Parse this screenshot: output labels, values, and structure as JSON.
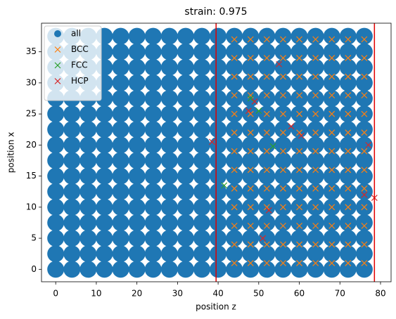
{
  "chart_data": {
    "type": "scatter",
    "title": "strain: 0.975",
    "xlabel": "position z",
    "ylabel": "position x",
    "xlim": [
      -3.5,
      82.6
    ],
    "ylim": [
      -2.0,
      39.6
    ],
    "xticks": [
      0,
      10,
      20,
      30,
      40,
      50,
      60,
      70,
      80
    ],
    "yticks": [
      0,
      5,
      10,
      15,
      20,
      25,
      30,
      35
    ],
    "legend": "upper left",
    "vlines": [
      39.5,
      78.5
    ],
    "vline_color": "#e00000",
    "series": [
      {
        "name": "all",
        "color": "#1f77b4",
        "marker": "o",
        "x": [
          0,
          4,
          8,
          12,
          16,
          20,
          24,
          28,
          32,
          36,
          40,
          44,
          48,
          52,
          56,
          60,
          64,
          68,
          72,
          76,
          0,
          4,
          8,
          12,
          16,
          20,
          24,
          28,
          32,
          36,
          40,
          44,
          48,
          52,
          56,
          60,
          64,
          68,
          72,
          76,
          0,
          4,
          8,
          12,
          16,
          20,
          24,
          28,
          32,
          36,
          40,
          44,
          48,
          52,
          56,
          60,
          64,
          68,
          72,
          76,
          0,
          4,
          8,
          12,
          16,
          20,
          24,
          28,
          32,
          36,
          40,
          44,
          48,
          52,
          56,
          60,
          64,
          68,
          72,
          76,
          0,
          4,
          8,
          12,
          16,
          20,
          24,
          28,
          32,
          36,
          40,
          44,
          48,
          52,
          56,
          60,
          64,
          68,
          72,
          76,
          0,
          4,
          8,
          12,
          16,
          20,
          24,
          28,
          32,
          36,
          40,
          44,
          48,
          52,
          56,
          60,
          64,
          68,
          72,
          76,
          0,
          4,
          8,
          12,
          16,
          20,
          24,
          28,
          32,
          36,
          40,
          44,
          48,
          52,
          56,
          60,
          64,
          68,
          72,
          76,
          0,
          4,
          8,
          12,
          16,
          20,
          24,
          28,
          32,
          36,
          40,
          44,
          48,
          52,
          56,
          60,
          64,
          68,
          72,
          76,
          0,
          4,
          8,
          12,
          16,
          20,
          24,
          28,
          32,
          36,
          40,
          44,
          48,
          52,
          56,
          60,
          64,
          68,
          72,
          76,
          0,
          4,
          8,
          12,
          16,
          20,
          24,
          28,
          32,
          36,
          40,
          44,
          48,
          52,
          56,
          60,
          64,
          68,
          72,
          76,
          0,
          4,
          8,
          12,
          16,
          20,
          24,
          28,
          32,
          36,
          40,
          44,
          48,
          52,
          56,
          60,
          64,
          68,
          72,
          76,
          0,
          4,
          8,
          12,
          16,
          20,
          24,
          28,
          32,
          36,
          40,
          44,
          48,
          52,
          56,
          60,
          64,
          68,
          72,
          76,
          0,
          4,
          8,
          12,
          16,
          20,
          24,
          28,
          32,
          36,
          40,
          44,
          48,
          52,
          56,
          60,
          64,
          68,
          72,
          76,
          0,
          4,
          8,
          12,
          16,
          20,
          24,
          28,
          32,
          36,
          40,
          44,
          48,
          52,
          56,
          60,
          64,
          68,
          72,
          76,
          0,
          4,
          8,
          12,
          16,
          20,
          24,
          28,
          32,
          36,
          40,
          44,
          48,
          52,
          56,
          60,
          64,
          68,
          72,
          76,
          0,
          4,
          8,
          12,
          16,
          20,
          24,
          28,
          32,
          36,
          40,
          44,
          48,
          52,
          56,
          60,
          64,
          68,
          72,
          76
        ],
        "values": [
          0,
          0,
          0,
          0,
          0,
          0,
          0,
          0,
          0,
          0,
          0,
          0,
          0,
          0,
          0,
          0,
          0,
          0,
          0,
          0,
          2.5,
          2.5,
          2.5,
          2.5,
          2.5,
          2.5,
          2.5,
          2.5,
          2.5,
          2.5,
          2.5,
          2.5,
          2.5,
          2.5,
          2.5,
          2.5,
          2.5,
          2.5,
          2.5,
          2.5,
          5,
          5,
          5,
          5,
          5,
          5,
          5,
          5,
          5,
          5,
          5,
          5,
          5,
          5,
          5,
          5,
          5,
          5,
          5,
          5,
          7.5,
          7.5,
          7.5,
          7.5,
          7.5,
          7.5,
          7.5,
          7.5,
          7.5,
          7.5,
          7.5,
          7.5,
          7.5,
          7.5,
          7.5,
          7.5,
          7.5,
          7.5,
          7.5,
          7.5,
          10,
          10,
          10,
          10,
          10,
          10,
          10,
          10,
          10,
          10,
          10,
          10,
          10,
          10,
          10,
          10,
          10,
          10,
          10,
          10,
          12.5,
          12.5,
          12.5,
          12.5,
          12.5,
          12.5,
          12.5,
          12.5,
          12.5,
          12.5,
          12.5,
          12.5,
          12.5,
          12.5,
          12.5,
          12.5,
          12.5,
          12.5,
          12.5,
          12.5,
          15,
          15,
          15,
          15,
          15,
          15,
          15,
          15,
          15,
          15,
          15,
          15,
          15,
          15,
          15,
          15,
          15,
          15,
          15,
          15,
          17.5,
          17.5,
          17.5,
          17.5,
          17.5,
          17.5,
          17.5,
          17.5,
          17.5,
          17.5,
          17.5,
          17.5,
          17.5,
          17.5,
          17.5,
          17.5,
          17.5,
          17.5,
          17.5,
          17.5,
          20,
          20,
          20,
          20,
          20,
          20,
          20,
          20,
          20,
          20,
          20,
          20,
          20,
          20,
          20,
          20,
          20,
          20,
          20,
          20,
          22.5,
          22.5,
          22.5,
          22.5,
          22.5,
          22.5,
          22.5,
          22.5,
          22.5,
          22.5,
          22.5,
          22.5,
          22.5,
          22.5,
          22.5,
          22.5,
          22.5,
          22.5,
          22.5,
          22.5,
          25,
          25,
          25,
          25,
          25,
          25,
          25,
          25,
          25,
          25,
          25,
          25,
          25,
          25,
          25,
          25,
          25,
          25,
          25,
          25,
          27.5,
          27.5,
          27.5,
          27.5,
          27.5,
          27.5,
          27.5,
          27.5,
          27.5,
          27.5,
          27.5,
          27.5,
          27.5,
          27.5,
          27.5,
          27.5,
          27.5,
          27.5,
          27.5,
          27.5,
          30,
          30,
          30,
          30,
          30,
          30,
          30,
          30,
          30,
          30,
          30,
          30,
          30,
          30,
          30,
          30,
          30,
          30,
          30,
          30,
          32.5,
          32.5,
          32.5,
          32.5,
          32.5,
          32.5,
          32.5,
          32.5,
          32.5,
          32.5,
          32.5,
          32.5,
          32.5,
          32.5,
          32.5,
          32.5,
          32.5,
          32.5,
          32.5,
          32.5,
          35,
          35,
          35,
          35,
          35,
          35,
          35,
          35,
          35,
          35,
          35,
          35,
          35,
          35,
          35,
          35,
          35,
          35,
          35,
          35,
          37.5,
          37.5,
          37.5,
          37.5,
          37.5,
          37.5,
          37.5,
          37.5,
          37.5,
          37.5,
          37.5,
          37.5,
          37.5,
          37.5,
          37.5,
          37.5,
          37.5,
          37.5,
          37.5,
          37.5
        ]
      },
      {
        "name": "BCC",
        "color": "#ff7f0e",
        "marker": "x",
        "x": [
          44,
          48,
          52,
          56,
          60,
          64,
          68,
          72,
          76,
          44,
          48,
          52,
          56,
          60,
          64,
          68,
          72,
          76,
          44,
          48,
          52,
          56,
          60,
          64,
          68,
          72,
          76,
          44,
          48,
          52,
          56,
          60,
          64,
          68,
          72,
          76,
          44,
          48,
          52,
          56,
          60,
          64,
          68,
          72,
          76,
          44,
          48,
          52,
          56,
          60,
          64,
          68,
          72,
          76,
          44,
          48,
          52,
          56,
          60,
          64,
          68,
          72,
          76,
          44,
          48,
          52,
          56,
          60,
          64,
          68,
          72,
          76,
          44,
          48,
          52,
          56,
          60,
          64,
          68,
          72,
          76,
          44,
          48,
          52,
          56,
          60,
          64,
          68,
          72,
          76,
          44,
          48,
          52,
          56,
          60,
          64,
          68,
          72,
          76,
          44,
          48,
          52,
          56,
          60,
          64,
          68,
          72,
          76,
          44,
          48,
          52,
          56,
          60,
          64,
          68,
          72,
          76
        ],
        "values": [
          1,
          1,
          1,
          1,
          1,
          1,
          1,
          1,
          1,
          4,
          4,
          4,
          4,
          4,
          4,
          4,
          4,
          4,
          7,
          7,
          7,
          7,
          7,
          7,
          7,
          7,
          7,
          10,
          10,
          10,
          10,
          10,
          10,
          10,
          10,
          10,
          13,
          13,
          13,
          13,
          13,
          13,
          13,
          13,
          13,
          16,
          16,
          16,
          16,
          16,
          16,
          16,
          16,
          16,
          19,
          19,
          19,
          19,
          19,
          19,
          19,
          19,
          19,
          22,
          22,
          22,
          22,
          22,
          22,
          22,
          22,
          22,
          25,
          25,
          25,
          25,
          25,
          25,
          25,
          25,
          25,
          28,
          28,
          28,
          28,
          28,
          28,
          28,
          28,
          28,
          31,
          31,
          31,
          31,
          31,
          31,
          31,
          31,
          31,
          34,
          34,
          34,
          34,
          34,
          34,
          34,
          34,
          34,
          37,
          37,
          37,
          37,
          37,
          37,
          37,
          37,
          37
        ]
      },
      {
        "name": "FCC",
        "color": "#2ca02c",
        "marker": "x",
        "x": [
          41.5,
          53.5,
          50,
          48
        ],
        "values": [
          13.5,
          19.8,
          25.5,
          27.5
        ]
      },
      {
        "name": "HCP",
        "color": "#d62728",
        "marker": "x",
        "x": [
          38.5,
          47.5,
          49,
          55,
          60.5,
          51,
          52.5,
          76,
          78.5,
          77,
          58
        ],
        "values": [
          20.5,
          25.5,
          27,
          33,
          21.5,
          5,
          9.5,
          12,
          11.5,
          20,
          23
        ]
      }
    ]
  }
}
